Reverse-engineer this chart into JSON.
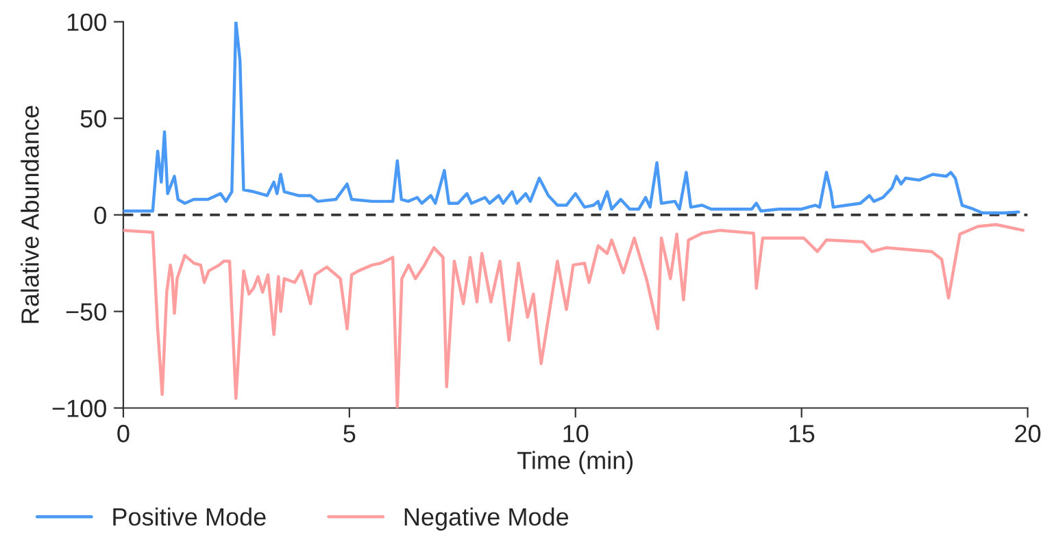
{
  "chart_data": {
    "type": "line",
    "xlabel": "Time (min)",
    "ylabel": "Ralative Abundance",
    "xlim": [
      0,
      20
    ],
    "ylim": [
      -100,
      100
    ],
    "xticks": [
      0,
      5,
      10,
      15,
      20
    ],
    "yticks": [
      -100,
      -50,
      0,
      50,
      100
    ],
    "grid": false,
    "legend": "bottom",
    "marker": "none",
    "line_style": "solid",
    "ref_lines": [
      {
        "axis": "y",
        "value": 0,
        "color": "#333333",
        "line_style": "dashed"
      }
    ],
    "series": [
      {
        "name": "Positive Mode",
        "color": "#4a9af5",
        "x": [
          0,
          0.65,
          0.76,
          0.84,
          0.91,
          0.98,
          1.13,
          1.21,
          1.36,
          1.56,
          1.87,
          2.15,
          2.27,
          2.4,
          2.49,
          2.58,
          2.66,
          2.88,
          3.18,
          3.33,
          3.4,
          3.48,
          3.56,
          3.87,
          4.14,
          4.3,
          4.7,
          4.95,
          5.05,
          5.5,
          5.96,
          6.06,
          6.15,
          6.3,
          6.5,
          6.6,
          6.8,
          6.9,
          7.1,
          7.2,
          7.4,
          7.6,
          7.7,
          8.0,
          8.1,
          8.3,
          8.4,
          8.6,
          8.7,
          8.9,
          9.0,
          9.2,
          9.4,
          9.6,
          9.8,
          10.0,
          10.2,
          10.4,
          10.5,
          10.55,
          10.7,
          10.8,
          11.0,
          11.2,
          11.4,
          11.55,
          11.65,
          11.8,
          11.9,
          12.2,
          12.3,
          12.45,
          12.55,
          12.8,
          13.0,
          13.5,
          13.9,
          14.0,
          14.1,
          14.5,
          15.0,
          15.3,
          15.4,
          15.45,
          15.55,
          15.65,
          15.7,
          16.0,
          16.3,
          16.5,
          16.6,
          16.8,
          17.0,
          17.1,
          17.2,
          17.3,
          17.6,
          17.9,
          18.2,
          18.3,
          18.4,
          18.55,
          18.8,
          19.0,
          19.5,
          19.8
        ],
        "values": [
          2,
          2,
          33,
          17,
          43,
          11,
          20,
          8,
          6,
          8,
          8,
          11,
          7,
          12,
          100,
          80,
          13,
          12,
          10,
          17,
          11,
          21,
          12,
          10,
          10,
          7,
          8,
          16,
          8,
          7,
          7,
          28,
          8,
          7,
          9,
          6,
          10,
          6,
          23,
          6,
          6,
          11,
          6,
          9,
          6,
          10,
          6,
          12,
          6,
          11,
          7,
          19,
          10,
          5,
          5,
          11,
          4,
          5,
          7,
          3,
          12,
          3,
          8,
          3,
          3,
          9,
          4,
          27,
          6,
          7,
          3,
          22,
          4,
          5,
          3,
          3,
          3,
          6,
          2,
          3,
          3,
          5,
          4,
          10,
          22,
          12,
          4,
          5,
          6,
          10,
          7,
          9,
          14,
          20,
          16,
          19,
          18,
          21,
          20,
          22,
          19,
          5,
          3,
          1,
          1,
          1.5
        ]
      },
      {
        "name": "Negative Mode",
        "color": "#ff9e9e",
        "x": [
          0,
          0.65,
          0.76,
          0.86,
          0.96,
          1.04,
          1.08,
          1.13,
          1.19,
          1.36,
          1.56,
          1.71,
          1.79,
          1.89,
          2.12,
          2.22,
          2.35,
          2.49,
          2.66,
          2.78,
          2.88,
          2.98,
          3.08,
          3.2,
          3.33,
          3.43,
          3.48,
          3.56,
          3.79,
          3.94,
          4.14,
          4.24,
          4.5,
          4.7,
          4.8,
          4.95,
          5.05,
          5.2,
          5.5,
          5.7,
          5.96,
          6.06,
          6.16,
          6.31,
          6.46,
          6.66,
          6.87,
          7.07,
          7.15,
          7.32,
          7.52,
          7.67,
          7.82,
          7.93,
          8.13,
          8.33,
          8.53,
          8.74,
          8.94,
          9.07,
          9.24,
          9.6,
          9.8,
          9.95,
          10.2,
          10.3,
          10.5,
          10.7,
          10.8,
          11.06,
          11.3,
          11.58,
          11.82,
          11.9,
          12.1,
          12.24,
          12.39,
          12.5,
          12.8,
          13.2,
          13.94,
          14.0,
          14.14,
          15.05,
          15.35,
          15.55,
          16.36,
          16.56,
          16.87,
          17.88,
          18.1,
          18.25,
          18.5,
          18.9,
          19.3,
          19.9
        ],
        "values": [
          -8,
          -9,
          -59,
          -93,
          -40,
          -26,
          -31,
          -51,
          -33,
          -21,
          -25,
          -26,
          -35,
          -29,
          -26,
          -24,
          -24,
          -95,
          -29,
          -41,
          -38,
          -32,
          -40,
          -31,
          -62,
          -32,
          -50,
          -33,
          -35,
          -29,
          -46,
          -31,
          -27,
          -31,
          -33,
          -59,
          -31,
          -29,
          -26,
          -25,
          -22,
          -100,
          -33,
          -26,
          -33,
          -26,
          -17,
          -22,
          -89,
          -24,
          -46,
          -22,
          -45,
          -20,
          -45,
          -24,
          -65,
          -25,
          -53,
          -41,
          -77,
          -24,
          -49,
          -26,
          -25,
          -35,
          -16,
          -20,
          -13,
          -30,
          -12,
          -34,
          -59,
          -12,
          -33,
          -10,
          -44,
          -13,
          -9.5,
          -8,
          -9.5,
          -38,
          -12,
          -12,
          -19,
          -13,
          -14,
          -19,
          -17,
          -19,
          -23,
          -43,
          -10,
          -6,
          -5,
          -8
        ]
      }
    ]
  }
}
